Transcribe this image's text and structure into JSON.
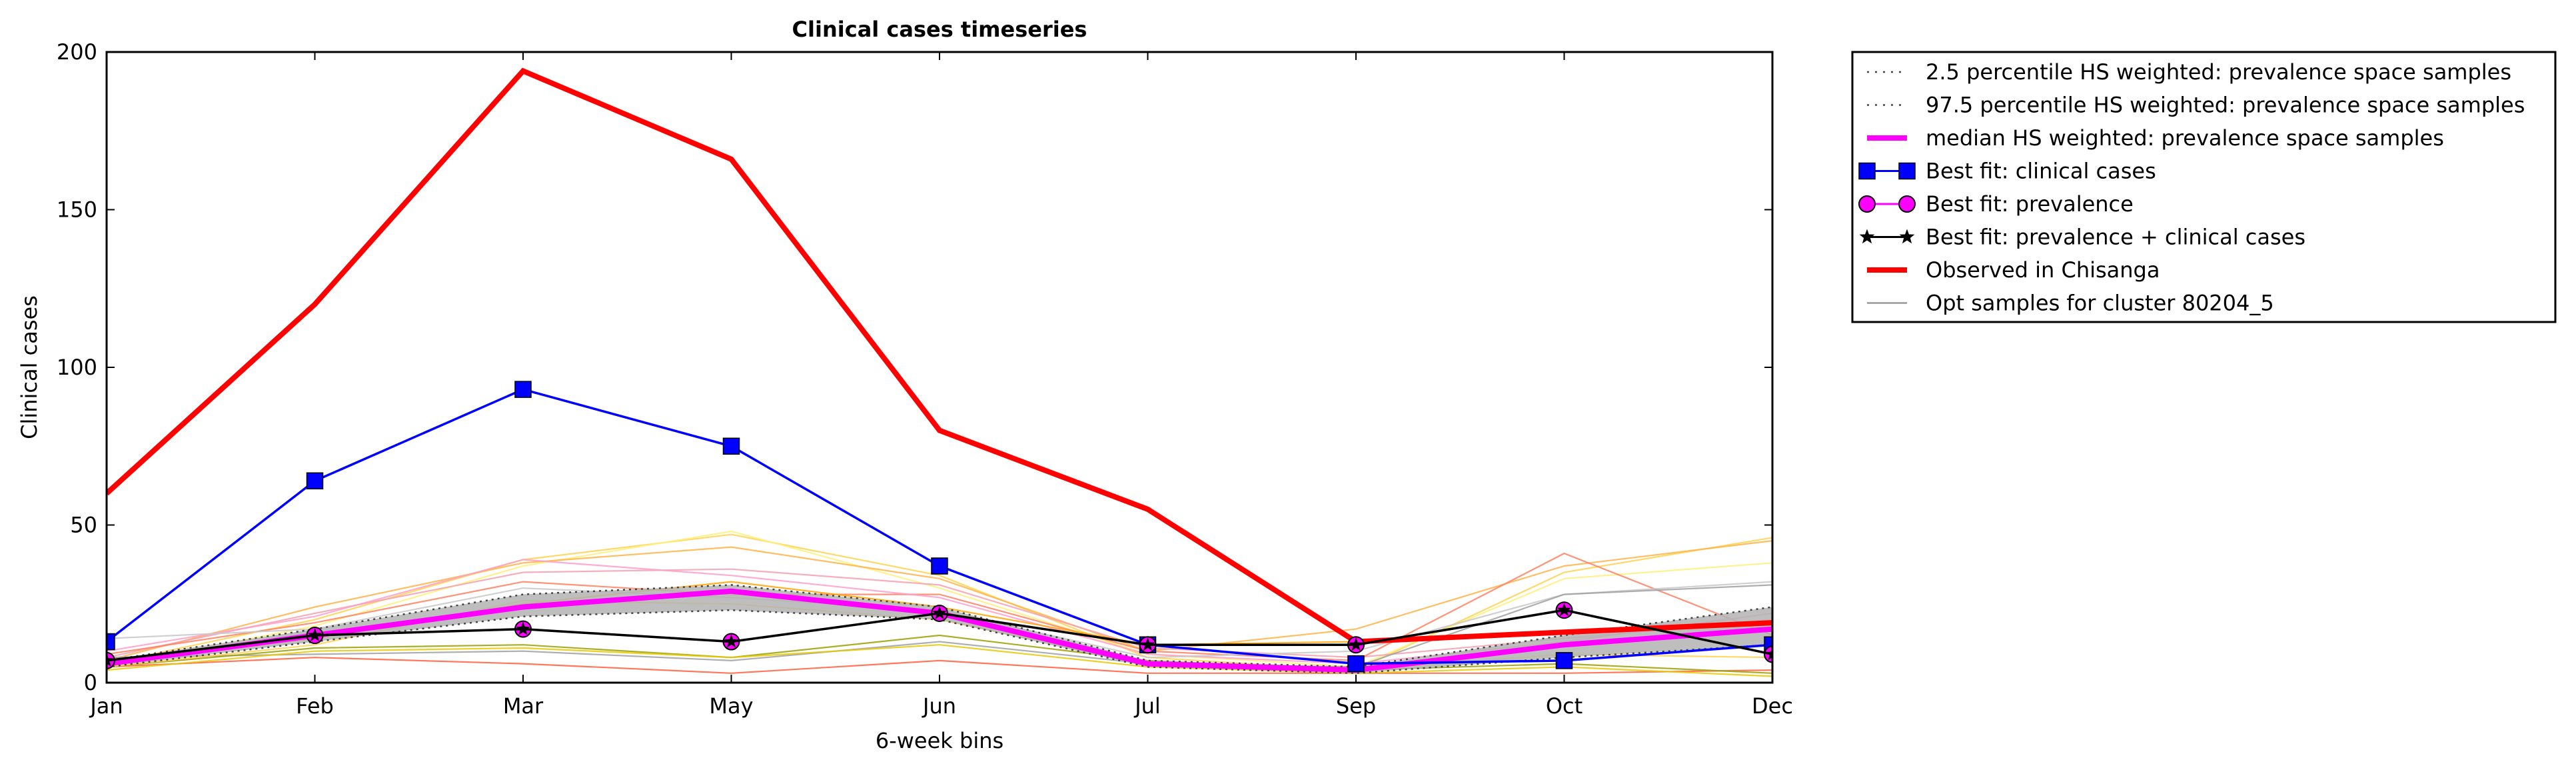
{
  "chart_data": {
    "type": "line",
    "title": "Clinical cases timeseries",
    "xlabel": "6-week bins",
    "ylabel": "Clinical cases",
    "categories": [
      "Jan",
      "Feb",
      "Mar",
      "May",
      "Jun",
      "Jul",
      "Sep",
      "Oct",
      "Dec"
    ],
    "ylim": [
      0,
      200
    ],
    "yticks": [
      0,
      50,
      100,
      150,
      200
    ],
    "grid": false,
    "legend_position": "outside-right-top",
    "band": {
      "lower_name": "2.5 percentile HS weighted: prevalence space samples",
      "upper_name": "97.5 percentile HS weighted: prevalence space samples",
      "lower": [
        5,
        13,
        21,
        23,
        20,
        5,
        3,
        8,
        12
      ],
      "upper": [
        7,
        17,
        28,
        31,
        24,
        7,
        5,
        15,
        24
      ],
      "fill_color": "#b3b3b3",
      "line_color": "#444444"
    },
    "median": {
      "name": "median HS weighted: prevalence space samples",
      "values": [
        6,
        15,
        24,
        29,
        22,
        6,
        4,
        12,
        17
      ],
      "color": "#ff00ff"
    },
    "best_fit_clinical": {
      "name": "Best fit: clinical cases",
      "values": [
        13,
        64,
        93,
        75,
        37,
        12,
        6,
        7,
        12
      ],
      "color": "#0000ff"
    },
    "best_fit_prevalence": {
      "name": "Best fit: prevalence",
      "values": [
        7,
        15,
        17,
        13,
        22,
        12,
        12,
        23,
        9
      ],
      "color": "#ff00ff"
    },
    "best_fit_both": {
      "name": "Best fit: prevalence + clinical cases",
      "values": [
        7,
        15,
        17,
        13,
        22,
        12,
        12,
        23,
        9
      ],
      "color": "#000000"
    },
    "observed": {
      "name": "Observed in Chisanga",
      "values": [
        60,
        120,
        194,
        166,
        80,
        55,
        13,
        16,
        19
      ],
      "color": "#ff0000"
    },
    "opt_samples_name": "Opt samples for cluster 80204_5",
    "opt_samples": [
      {
        "color": "#ffd24d",
        "values": [
          6,
          20,
          39,
          47,
          34,
          8,
          4,
          35,
          46
        ]
      },
      {
        "color": "#fff07a",
        "values": [
          5,
          18,
          37,
          48,
          30,
          9,
          5,
          33,
          38
        ]
      },
      {
        "color": "#ffb347",
        "values": [
          7,
          24,
          38,
          43,
          33,
          10,
          17,
          37,
          45
        ]
      },
      {
        "color": "#f4a0b0",
        "values": [
          8,
          22,
          35,
          36,
          31,
          11,
          8,
          14,
          20
        ]
      },
      {
        "color": "#ff8060",
        "values": [
          9,
          19,
          32,
          28,
          28,
          10,
          7,
          41,
          15
        ]
      },
      {
        "color": "#ff9ec8",
        "values": [
          10,
          21,
          39,
          34,
          27,
          9,
          6,
          13,
          22
        ]
      },
      {
        "color": "#ff6040",
        "values": [
          5,
          8,
          6,
          3,
          7,
          3,
          3,
          3,
          4
        ]
      },
      {
        "color": "#ffa500",
        "values": [
          6,
          14,
          25,
          32,
          24,
          12,
          13,
          16,
          19
        ]
      },
      {
        "color": "#c8c8c8",
        "values": [
          14,
          17,
          30,
          27,
          23,
          8,
          10,
          28,
          32
        ]
      },
      {
        "color": "#a0a0a0",
        "values": [
          8,
          9,
          10,
          7,
          13,
          6,
          5,
          28,
          31
        ]
      },
      {
        "color": "#9aa000",
        "values": [
          5,
          11,
          12,
          8,
          15,
          7,
          4,
          6,
          3
        ]
      },
      {
        "color": "#e8c800",
        "values": [
          4,
          10,
          11,
          8,
          12,
          5,
          3,
          5,
          2
        ]
      },
      {
        "color": "#ffd24d",
        "values": [
          5,
          12,
          26,
          25,
          20,
          6,
          4,
          9,
          8
        ]
      }
    ]
  }
}
